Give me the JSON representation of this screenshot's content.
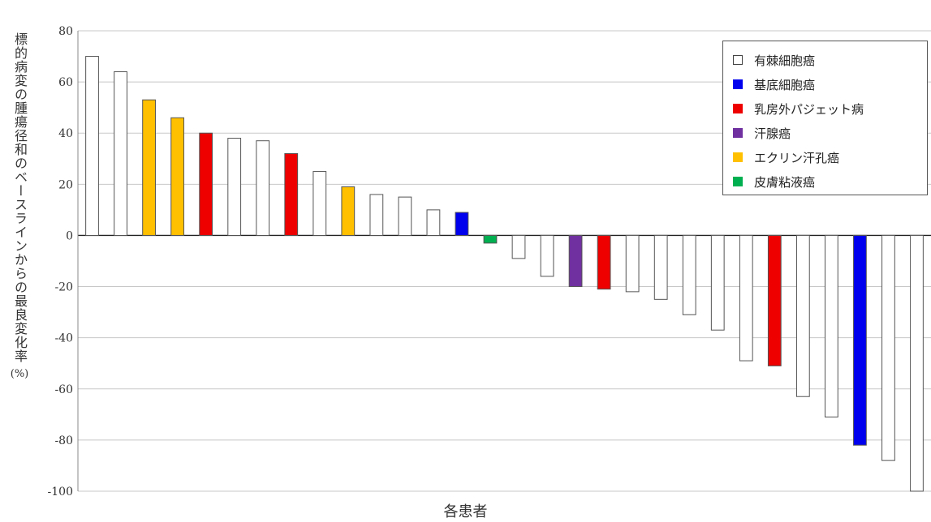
{
  "chart_data": {
    "type": "bar",
    "ylabel": "標的病変の腫瘍径和のベースラインからの最良変化率",
    "ylabel_unit": "(%)",
    "xlabel": "各患者",
    "ylim": [
      -100,
      80
    ],
    "yticks": [
      "80",
      "60",
      "40",
      "20",
      "0",
      "-20",
      "-40",
      "-60",
      "-80",
      "-100"
    ],
    "grid": true,
    "legend_position": "top-right",
    "series": [
      {
        "name": "有棘細胞癌",
        "color": "#ffffff"
      },
      {
        "name": "基底細胞癌",
        "color": "#0000ee"
      },
      {
        "name": "乳房外パジェット病",
        "color": "#ee0000"
      },
      {
        "name": "汗腺癌",
        "color": "#7030a0"
      },
      {
        "name": "エクリン汗孔癌",
        "color": "#ffc000"
      },
      {
        "name": "皮膚粘液癌",
        "color": "#00b050"
      }
    ],
    "bars": [
      {
        "value": 70,
        "series": 0
      },
      {
        "value": 64,
        "series": 0
      },
      {
        "value": 53,
        "series": 4
      },
      {
        "value": 46,
        "series": 4
      },
      {
        "value": 40,
        "series": 2
      },
      {
        "value": 38,
        "series": 0
      },
      {
        "value": 37,
        "series": 0
      },
      {
        "value": 32,
        "series": 2
      },
      {
        "value": 25,
        "series": 0
      },
      {
        "value": 19,
        "series": 4
      },
      {
        "value": 16,
        "series": 0
      },
      {
        "value": 15,
        "series": 0
      },
      {
        "value": 10,
        "series": 0
      },
      {
        "value": 9,
        "series": 1
      },
      {
        "value": -3,
        "series": 5
      },
      {
        "value": -9,
        "series": 0
      },
      {
        "value": -16,
        "series": 0
      },
      {
        "value": -20,
        "series": 3
      },
      {
        "value": -21,
        "series": 2
      },
      {
        "value": -22,
        "series": 0
      },
      {
        "value": -25,
        "series": 0
      },
      {
        "value": -31,
        "series": 0
      },
      {
        "value": -37,
        "series": 0
      },
      {
        "value": -49,
        "series": 0
      },
      {
        "value": -51,
        "series": 2
      },
      {
        "value": -63,
        "series": 0
      },
      {
        "value": -71,
        "series": 0
      },
      {
        "value": -82,
        "series": 1
      },
      {
        "value": -88,
        "series": 0
      },
      {
        "value": -100,
        "series": 0
      }
    ]
  }
}
